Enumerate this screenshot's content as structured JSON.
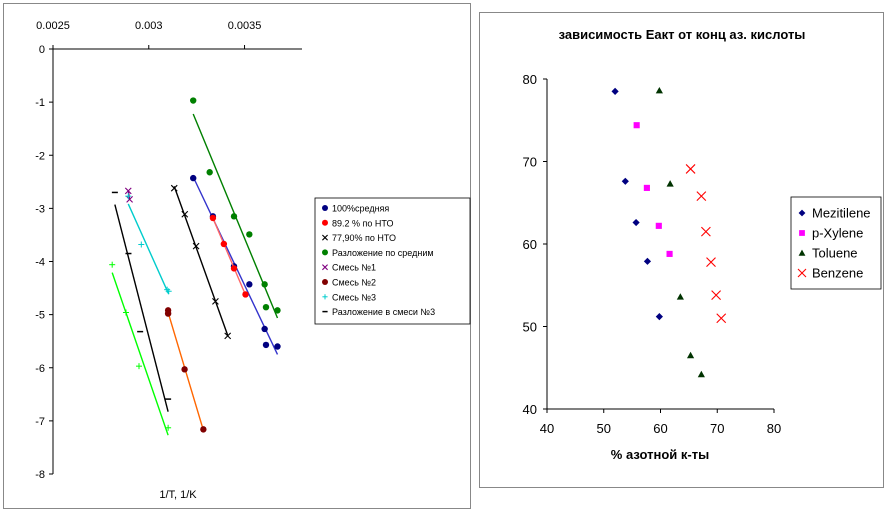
{
  "chart_data": [
    {
      "type": "scatter",
      "title": "",
      "xlabel": "1/T, 1/K",
      "ylabel": "",
      "xlim": [
        0.0025,
        0.0038
      ],
      "ylim": [
        -8,
        0
      ],
      "x_ticks": [
        "0.0025",
        "0.003",
        "0.0035"
      ],
      "y_ticks": [
        "0",
        "-1",
        "-2",
        "-3",
        "-4",
        "-5",
        "-6",
        "-7",
        "-8"
      ],
      "x_axis_position": "top",
      "grid": false,
      "legend_position": "right",
      "series": [
        {
          "name": "100%средняя",
          "marker": "circle",
          "color": "#000080",
          "line": "#3333cc",
          "x": [
            0.003232,
            0.003335,
            0.003445,
            0.003525,
            0.003605,
            0.003612,
            0.003672
          ],
          "y": [
            -2.43,
            -3.15,
            -4.09,
            -4.43,
            -5.27,
            -5.57,
            -5.6
          ]
        },
        {
          "name": "89.2 % по НТО",
          "marker": "circle",
          "color": "#ff0000",
          "line": "#ff6666",
          "x": [
            0.003335,
            0.003392,
            0.003445,
            0.003505
          ],
          "y": [
            -3.18,
            -3.67,
            -4.13,
            -4.62
          ]
        },
        {
          "name": "77,90% по НТО",
          "marker": "x",
          "color": "#000000",
          "line": "#000000",
          "x": [
            0.003133,
            0.003188,
            0.003247,
            0.003348,
            0.003412
          ],
          "y": [
            -2.62,
            -3.11,
            -3.71,
            -4.75,
            -5.4
          ]
        },
        {
          "name": "Разложение по средним",
          "marker": "circle",
          "color": "#008000",
          "line": "#008000",
          "x": [
            0.003232,
            0.003318,
            0.003445,
            0.003525,
            0.003605,
            0.003612,
            0.003672
          ],
          "y": [
            -0.97,
            -2.32,
            -3.15,
            -3.49,
            -4.43,
            -4.86,
            -4.92
          ]
        },
        {
          "name": "Смесь №1",
          "marker": "x",
          "color": "#800080",
          "line": "#800080",
          "x": [
            0.002893,
            0.0029
          ],
          "y": [
            -2.67,
            -2.83
          ]
        },
        {
          "name": "Смесь №2",
          "marker": "circle",
          "color": "#800000",
          "line": "#ff6600",
          "x": [
            0.003101,
            0.003101,
            0.003187,
            0.003285
          ],
          "y": [
            -4.92,
            -4.98,
            -6.03,
            -7.16
          ]
        },
        {
          "name": "Смесь №3",
          "marker": "plus",
          "color": "#00cccc",
          "line": "#00cccc",
          "x": [
            0.002893,
            0.002961,
            0.003096,
            0.003104
          ],
          "y": [
            -2.77,
            -3.68,
            -4.53,
            -4.56
          ]
        },
        {
          "name": "Разложение в смеси №3",
          "marker": "dash",
          "color": "#000000",
          "line": "#000000",
          "x": [
            0.002823,
            0.002894,
            0.002955,
            0.003101
          ],
          "y": [
            -2.7,
            -3.85,
            -5.32,
            -6.59
          ]
        }
      ],
      "extra_series": [
        {
          "marker": "plus",
          "color": "#00ff00",
          "line": "#00ff00",
          "x": [
            0.002809,
            0.002881,
            0.002949,
            0.003101
          ],
          "y": [
            -4.06,
            -4.96,
            -5.97,
            -7.13
          ]
        }
      ]
    },
    {
      "type": "scatter",
      "title": "зависимость Еакт от конц аз. кислоты",
      "xlabel": "% азотной к-ты",
      "ylabel": "",
      "xlim": [
        40,
        80
      ],
      "ylim": [
        40,
        80
      ],
      "x_ticks": [
        "40",
        "50",
        "60",
        "70",
        "80"
      ],
      "y_ticks": [
        "40",
        "50",
        "60",
        "70",
        "80"
      ],
      "grid": false,
      "legend_position": "right",
      "series": [
        {
          "name": "Mezitilene",
          "marker": "diamond",
          "color": "#000080",
          "x": [
            52.0,
            53.8,
            55.7,
            57.7,
            59.8
          ],
          "y": [
            78.5,
            67.6,
            62.6,
            57.9,
            51.2
          ]
        },
        {
          "name": "p-Xylene",
          "marker": "square",
          "color": "#ff00ff",
          "x": [
            55.8,
            57.6,
            59.7,
            61.6
          ],
          "y": [
            74.4,
            66.8,
            62.2,
            58.8
          ]
        },
        {
          "name": "Toluene",
          "marker": "triangle",
          "color": "#003300",
          "x": [
            59.8,
            61.7,
            63.5,
            65.3,
            67.2
          ],
          "y": [
            78.6,
            67.3,
            53.6,
            46.5,
            44.2
          ]
        },
        {
          "name": "Benzene",
          "marker": "x",
          "color": "#ff0000",
          "x": [
            65.3,
            67.2,
            68.0,
            68.9,
            69.8,
            70.7
          ],
          "y": [
            69.1,
            65.8,
            61.5,
            57.8,
            53.8,
            51.0
          ]
        }
      ]
    }
  ]
}
